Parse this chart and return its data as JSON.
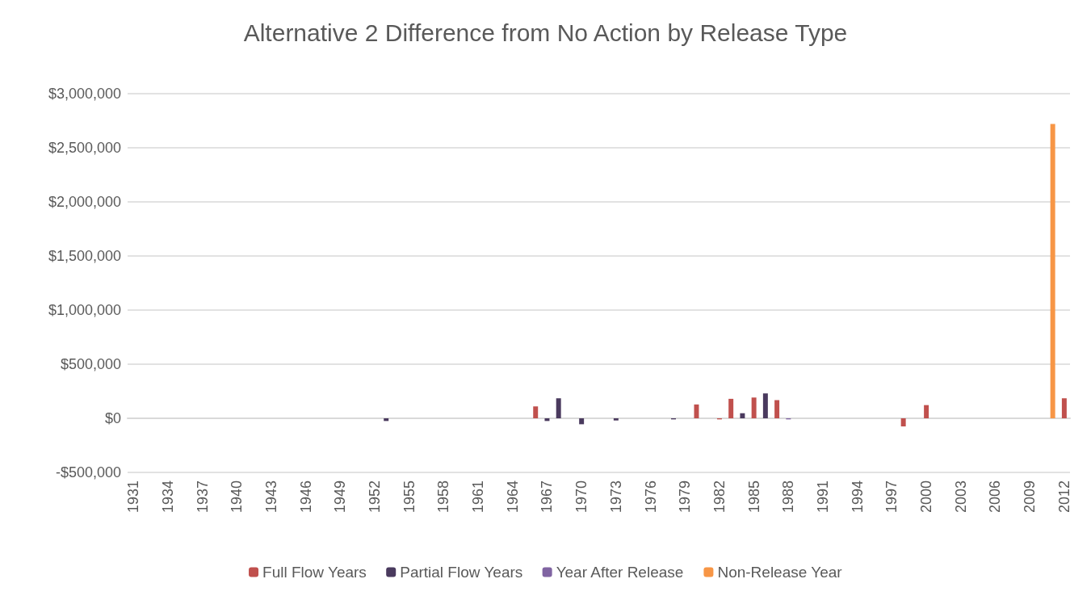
{
  "chart_data": {
    "type": "bar",
    "title": "Alternative 2 Difference from No Action by Release Type",
    "categories": [
      "1931",
      null,
      null,
      "1934",
      null,
      null,
      "1937",
      null,
      null,
      "1940",
      null,
      null,
      "1943",
      null,
      null,
      "1946",
      null,
      null,
      "1949",
      null,
      null,
      "1952",
      null,
      null,
      "1955",
      null,
      null,
      "1958",
      null,
      null,
      "1961",
      null,
      null,
      "1964",
      null,
      null,
      "1967",
      null,
      null,
      "1970",
      null,
      null,
      "1973",
      null,
      null,
      "1976",
      null,
      null,
      "1979",
      null,
      null,
      "1982",
      null,
      null,
      "1985",
      null,
      null,
      "1988",
      null,
      null,
      "1991",
      null,
      null,
      "1994",
      null,
      null,
      "1997",
      null,
      null,
      "2000",
      null,
      null,
      "2003",
      null,
      null,
      "2006",
      null,
      null,
      "2009",
      null,
      null,
      "2012"
    ],
    "series": [
      {
        "name": "Full Flow Years",
        "color": "#c0504d",
        "values": [
          null,
          null,
          null,
          null,
          null,
          null,
          null,
          null,
          null,
          null,
          null,
          null,
          null,
          null,
          null,
          null,
          null,
          null,
          null,
          null,
          null,
          null,
          null,
          null,
          null,
          null,
          null,
          null,
          null,
          null,
          null,
          null,
          null,
          null,
          null,
          110000,
          null,
          null,
          null,
          null,
          null,
          null,
          null,
          null,
          null,
          null,
          null,
          null,
          null,
          128000,
          null,
          -10000,
          180000,
          null,
          192000,
          null,
          168000,
          null,
          null,
          null,
          null,
          null,
          null,
          null,
          null,
          null,
          null,
          -75000,
          null,
          122000,
          null,
          null,
          null,
          null,
          null,
          null,
          null,
          null,
          null,
          null,
          null,
          185000
        ]
      },
      {
        "name": "Partial Flow Years",
        "color": "#4a3a5e",
        "values": [
          null,
          null,
          null,
          null,
          null,
          null,
          null,
          null,
          null,
          null,
          null,
          null,
          null,
          null,
          null,
          null,
          null,
          null,
          null,
          null,
          null,
          null,
          -25000,
          null,
          null,
          null,
          null,
          null,
          null,
          null,
          null,
          null,
          null,
          null,
          null,
          null,
          -25000,
          185000,
          null,
          -55000,
          null,
          null,
          -20000,
          null,
          null,
          null,
          null,
          -10000,
          null,
          null,
          null,
          null,
          null,
          47000,
          null,
          230000,
          null,
          null,
          null,
          null,
          null,
          null,
          null,
          null,
          null,
          null,
          null,
          null,
          null,
          null,
          null,
          null,
          null,
          null,
          null,
          null,
          null,
          null,
          null,
          null,
          null,
          null
        ]
      },
      {
        "name": "Year After Release",
        "color": "#8064a2",
        "values": [
          null,
          null,
          null,
          null,
          null,
          null,
          null,
          null,
          null,
          null,
          null,
          null,
          null,
          null,
          null,
          null,
          null,
          null,
          null,
          null,
          null,
          null,
          null,
          null,
          null,
          null,
          null,
          null,
          null,
          null,
          null,
          null,
          null,
          null,
          null,
          null,
          null,
          null,
          null,
          null,
          null,
          null,
          null,
          null,
          null,
          null,
          null,
          null,
          null,
          null,
          null,
          null,
          null,
          null,
          null,
          null,
          null,
          -10000,
          null,
          null,
          null,
          null,
          null,
          null,
          null,
          null,
          null,
          null,
          null,
          null,
          null,
          null,
          null,
          null,
          null,
          null,
          null,
          null,
          null,
          null,
          null,
          null
        ]
      },
      {
        "name": "Non-Release Year",
        "color": "#f79646",
        "values": [
          null,
          null,
          null,
          null,
          null,
          null,
          null,
          null,
          null,
          null,
          null,
          null,
          null,
          null,
          null,
          null,
          null,
          null,
          null,
          null,
          null,
          null,
          null,
          null,
          null,
          null,
          null,
          null,
          null,
          null,
          null,
          null,
          null,
          null,
          null,
          null,
          null,
          null,
          null,
          null,
          null,
          null,
          null,
          null,
          null,
          null,
          null,
          null,
          null,
          null,
          null,
          null,
          null,
          null,
          null,
          null,
          null,
          null,
          null,
          null,
          null,
          null,
          null,
          null,
          null,
          null,
          null,
          null,
          null,
          null,
          null,
          null,
          null,
          null,
          null,
          null,
          null,
          null,
          null,
          null,
          2720000,
          null
        ]
      }
    ],
    "ylim": [
      -500000,
      3000000
    ],
    "yticks": [
      {
        "value": -500000,
        "label": "-$500,000"
      },
      {
        "value": 0,
        "label": "$0"
      },
      {
        "value": 500000,
        "label": "$500,000"
      },
      {
        "value": 1000000,
        "label": "$1,000,000"
      },
      {
        "value": 1500000,
        "label": "$1,500,000"
      },
      {
        "value": 2000000,
        "label": "$2,000,000"
      },
      {
        "value": 2500000,
        "label": "$2,500,000"
      },
      {
        "value": 3000000,
        "label": "$3,000,000"
      }
    ],
    "grid": "y",
    "legend": "bottom"
  }
}
